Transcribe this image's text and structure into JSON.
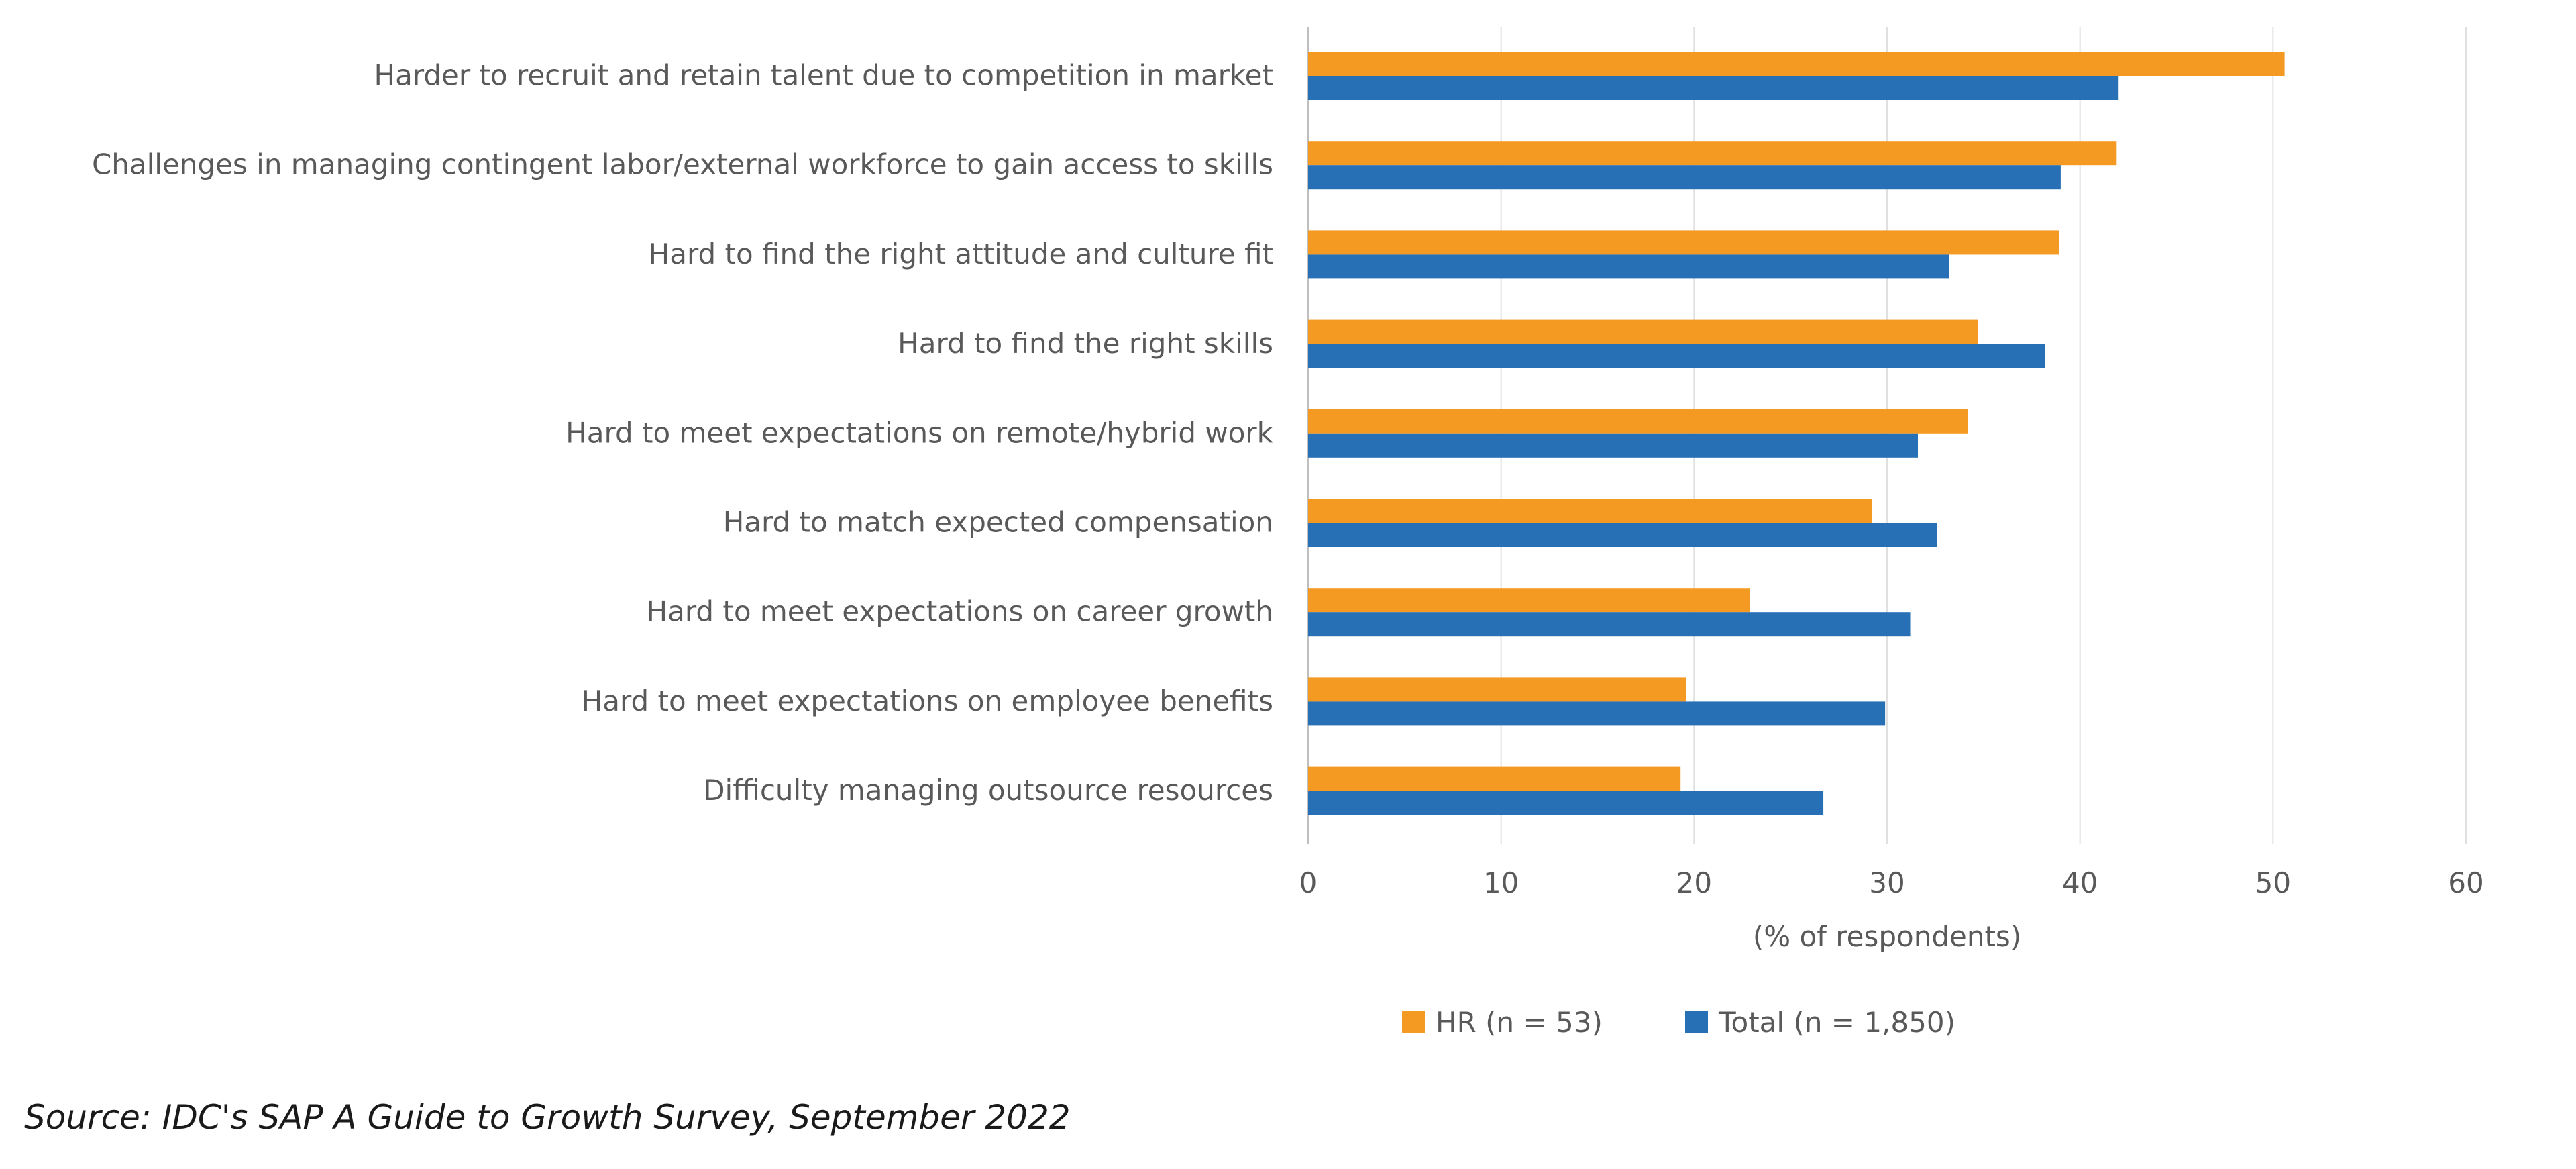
{
  "chart_data": {
    "type": "bar",
    "orientation": "horizontal",
    "categories": [
      "Harder to recruit and retain talent due to competition in market",
      "Challenges in managing contingent labor/external workforce to gain access to skills",
      "Hard to find the right attitude and culture fit",
      "Hard to find the right skills",
      "Hard to meet expectations on remote/hybrid work",
      "Hard to match expected compensation",
      "Hard to meet expectations on career growth",
      "Hard to meet expectations on employee benefits",
      "Difficulty managing outsource resources"
    ],
    "series": [
      {
        "name": "HR (n = 53)",
        "color": "#f49a22",
        "values": [
          50.6,
          41.9,
          38.9,
          34.7,
          34.2,
          29.2,
          22.9,
          19.6,
          19.3
        ]
      },
      {
        "name": "Total (n = 1,850)",
        "color": "#2870b5",
        "values": [
          42.0,
          39.0,
          33.2,
          38.2,
          31.6,
          32.6,
          31.2,
          29.9,
          26.7
        ]
      }
    ],
    "xlabel": "(% of respondents)",
    "ylabel": "",
    "xlim": [
      0,
      60
    ],
    "xticks": [
      0,
      10,
      20,
      30,
      40,
      50,
      60
    ],
    "grid": true,
    "legend_position": "bottom-center"
  },
  "source_note": "Source: IDC's SAP A Guide to Growth Survey, September 2022"
}
